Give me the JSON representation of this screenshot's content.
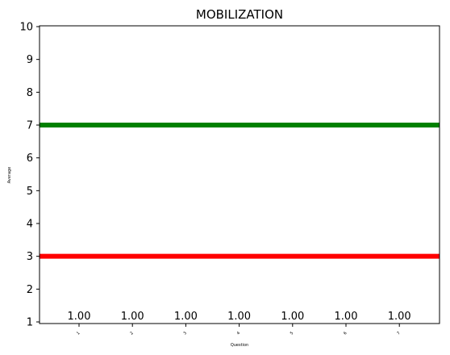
{
  "chart_data": {
    "type": "bar",
    "title": "MOBILIZATION",
    "xlabel": "Question",
    "ylabel": "Average",
    "categories": [
      "1",
      "2",
      "3",
      "4",
      "5",
      "6",
      "7"
    ],
    "values": [
      1.0,
      1.0,
      1.0,
      1.0,
      1.0,
      1.0,
      1.0
    ],
    "data_labels": [
      "1.00",
      "1.00",
      "1.00",
      "1.00",
      "1.00",
      "1.00",
      "1.00"
    ],
    "ylim": [
      1,
      10
    ],
    "yticks": [
      1,
      2,
      3,
      4,
      5,
      6,
      7,
      8,
      9,
      10
    ],
    "reference_lines": [
      {
        "y": 7,
        "color": "#008000"
      },
      {
        "y": 3,
        "color": "#ff0000"
      }
    ],
    "grid": false,
    "legend": "none"
  }
}
